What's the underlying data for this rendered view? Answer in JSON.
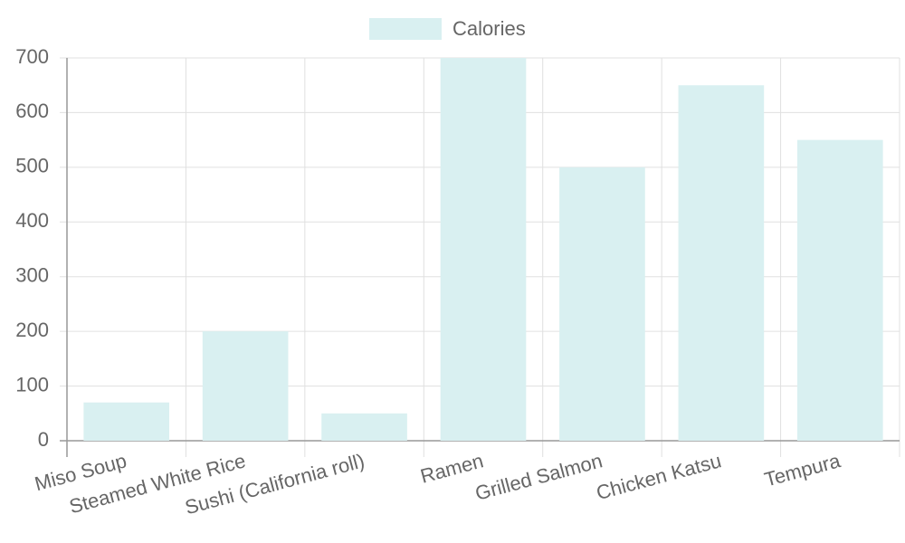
{
  "chart_data": {
    "type": "bar",
    "categories": [
      "Miso Soup",
      "Steamed White Rice",
      "Sushi (California roll)",
      "Ramen",
      "Grilled Salmon",
      "Chicken Katsu",
      "Tempura"
    ],
    "series": [
      {
        "name": "Calories",
        "color": "#d9f0f1",
        "values": [
          70,
          200,
          50,
          700,
          500,
          650,
          550
        ]
      }
    ],
    "ylim": [
      0,
      700
    ],
    "yticks": [
      0,
      100,
      200,
      300,
      400,
      500,
      600,
      700
    ],
    "grid": true,
    "legend": "top"
  }
}
